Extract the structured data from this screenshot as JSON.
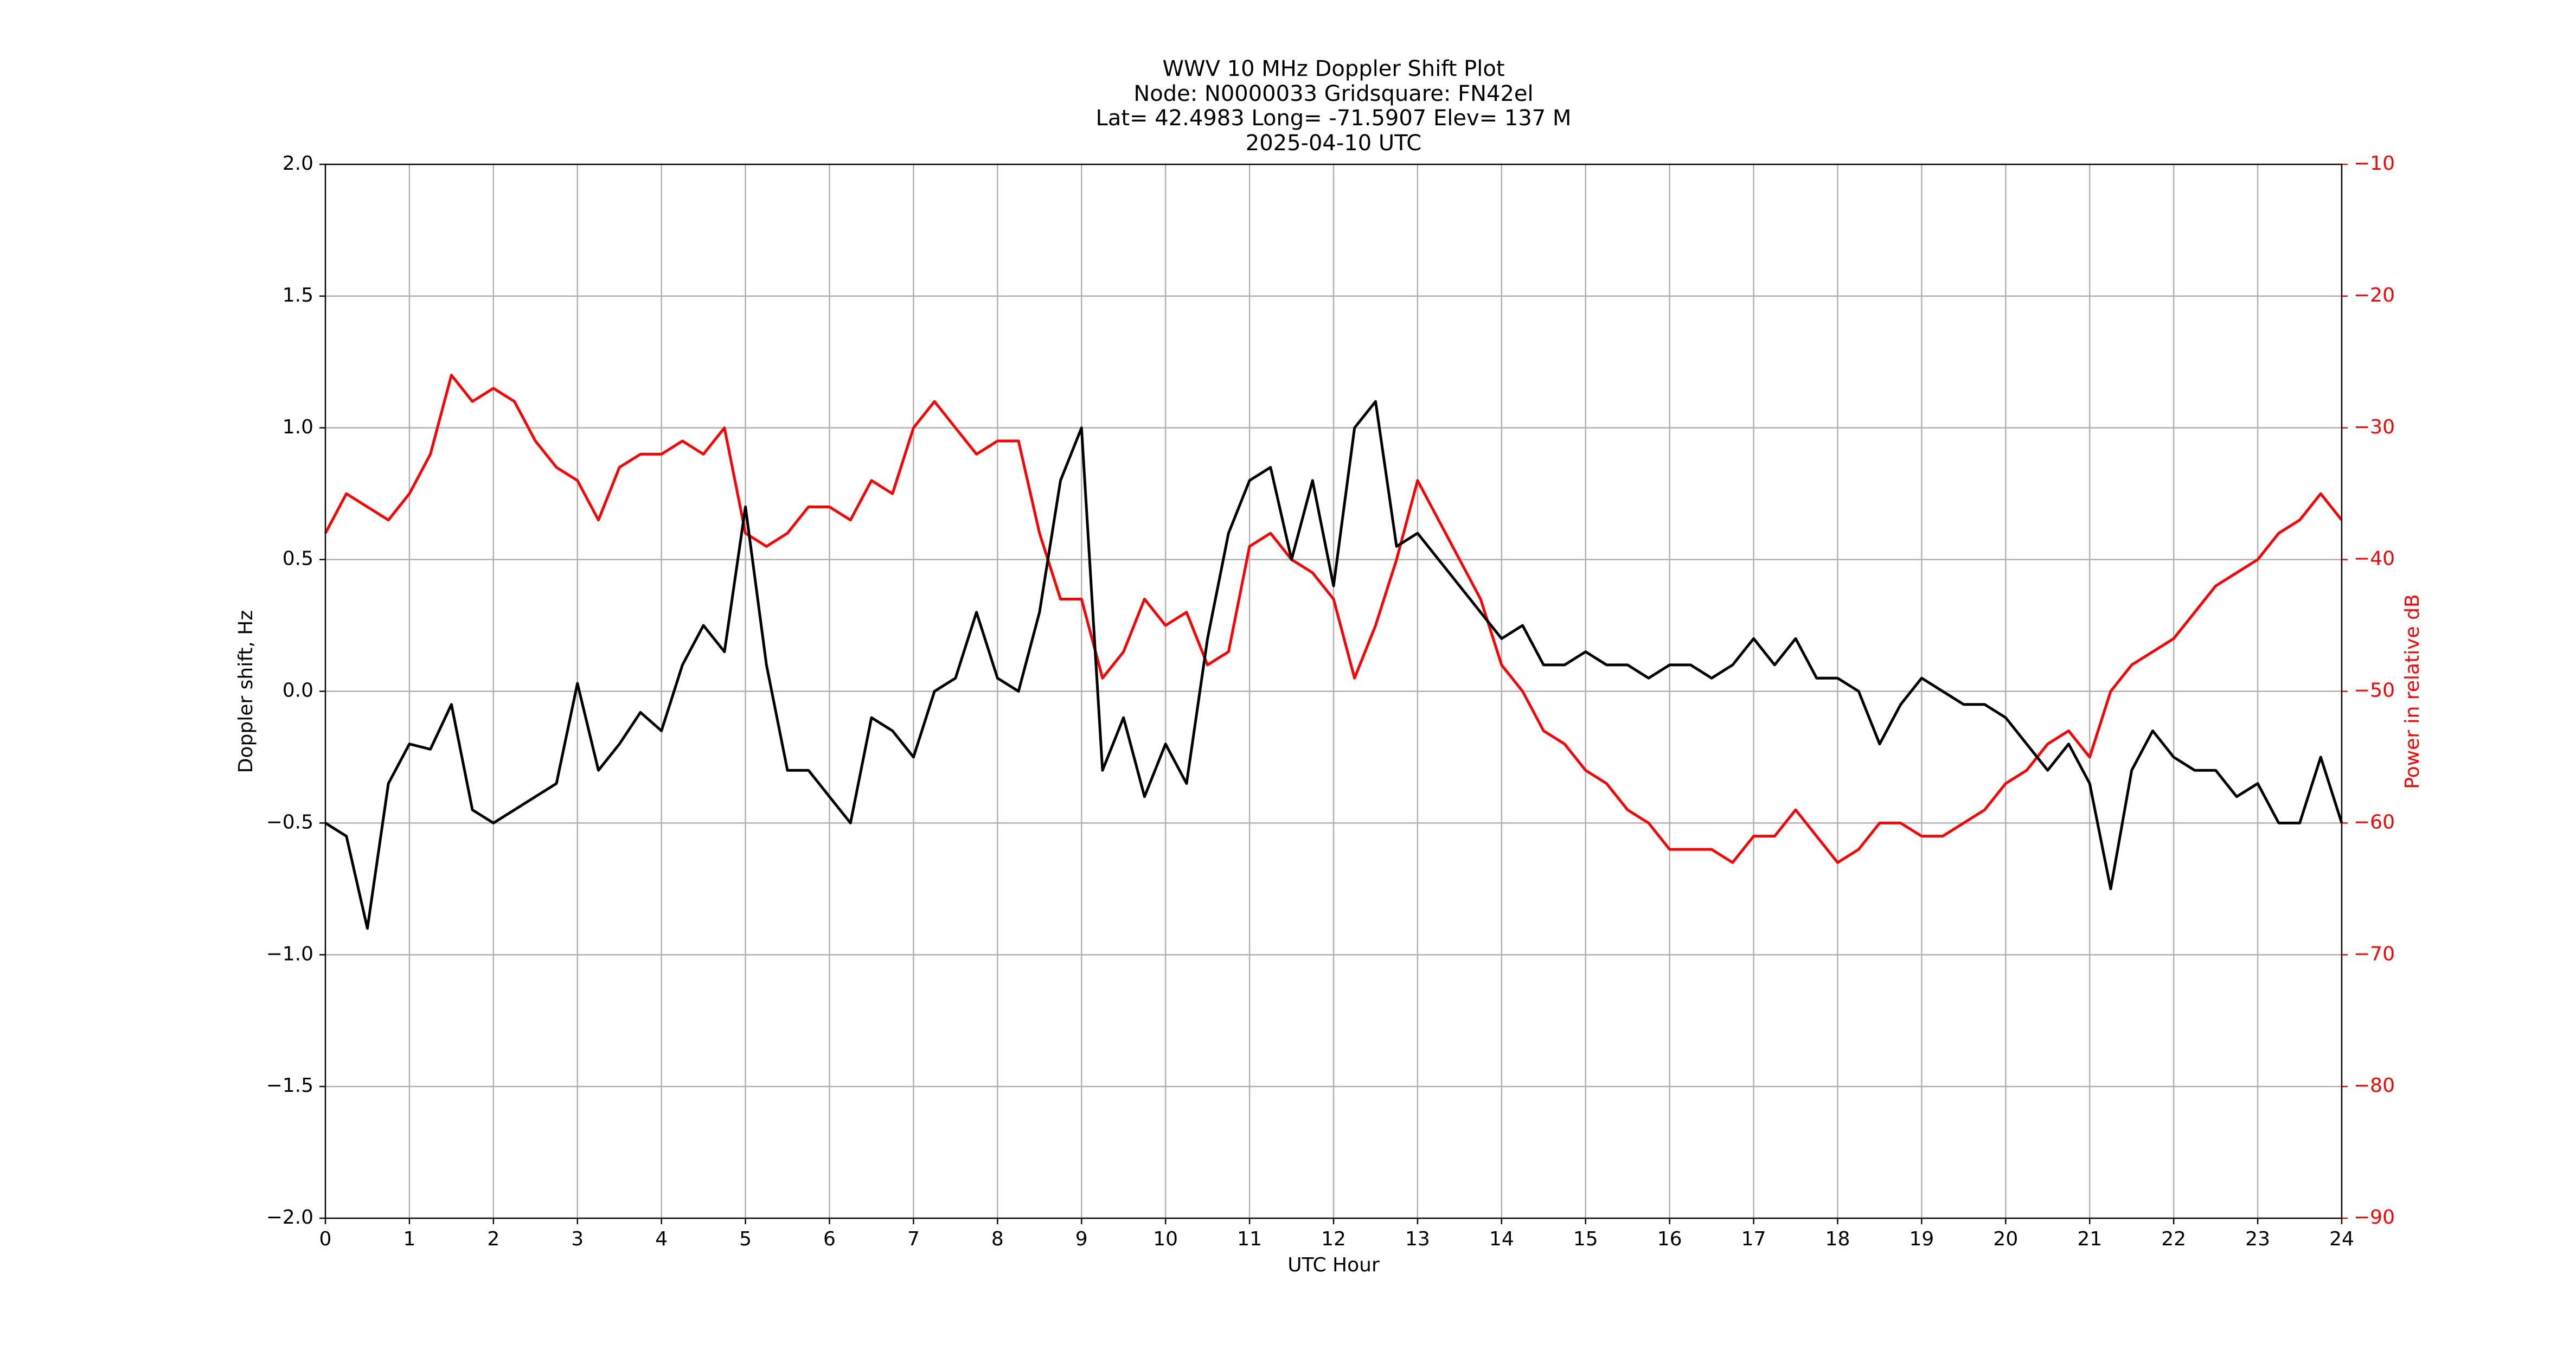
{
  "chart_data": {
    "type": "line",
    "title": [
      "WWV 10 MHz Doppler Shift Plot",
      "Node:  N0000033     Gridsquare:  FN42el",
      "Lat= 42.4983    Long= -71.5907    Elev= 137 M",
      "2025-04-10  UTC"
    ],
    "xlabel": "UTC Hour",
    "ylabel": "Doppler shift, Hz",
    "y2label": "Power in relative dB",
    "x": [
      0,
      0.25,
      0.5,
      0.75,
      1,
      1.25,
      1.5,
      1.75,
      2,
      2.25,
      2.5,
      2.75,
      3,
      3.25,
      3.5,
      3.75,
      4,
      4.25,
      4.5,
      4.75,
      5,
      5.25,
      5.5,
      5.75,
      6,
      6.25,
      6.5,
      6.75,
      7,
      7.25,
      7.5,
      7.75,
      8,
      8.25,
      8.5,
      8.75,
      9,
      9.25,
      9.5,
      9.75,
      10,
      10.25,
      10.5,
      10.75,
      11,
      11.25,
      11.5,
      11.75,
      12,
      12.25,
      12.5,
      12.75,
      13,
      13.25,
      13.5,
      13.75,
      14,
      14.25,
      14.5,
      14.75,
      15,
      15.25,
      15.5,
      15.75,
      16,
      16.25,
      16.5,
      16.75,
      17,
      17.25,
      17.5,
      17.75,
      18,
      18.25,
      18.5,
      18.75,
      19,
      19.25,
      19.5,
      19.75,
      20,
      20.25,
      20.5,
      20.75,
      21,
      21.25,
      21.5,
      21.75,
      22,
      22.25,
      22.5,
      22.75,
      23,
      23.25,
      23.5,
      23.75,
      24
    ],
    "series": [
      {
        "name": "Doppler shift",
        "color": "#000000",
        "axis": "y",
        "values": [
          -0.5,
          -0.55,
          -0.9,
          -0.35,
          -0.2,
          -0.22,
          -0.05,
          -0.45,
          -0.5,
          -0.45,
          -0.4,
          -0.35,
          0.03,
          -0.3,
          -0.2,
          -0.08,
          -0.15,
          0.1,
          0.25,
          0.15,
          0.7,
          0.1,
          -0.3,
          -0.3,
          -0.4,
          -0.5,
          -0.1,
          -0.15,
          -0.25,
          0.0,
          0.05,
          0.3,
          0.05,
          0.0,
          0.3,
          0.8,
          1.0,
          -0.3,
          -0.1,
          -0.4,
          -0.2,
          -0.35,
          0.2,
          0.6,
          0.8,
          0.85,
          0.5,
          0.8,
          0.4,
          1.0,
          1.1,
          0.55,
          0.6,
          0.5,
          0.4,
          0.3,
          0.2,
          0.25,
          0.1,
          0.1,
          0.15,
          0.1,
          0.1,
          0.05,
          0.1,
          0.1,
          0.05,
          0.1,
          0.2,
          0.1,
          0.2,
          0.05,
          0.05,
          0.0,
          -0.2,
          -0.05,
          0.05,
          0.0,
          -0.05,
          -0.05,
          -0.1,
          -0.2,
          -0.3,
          -0.2,
          -0.35,
          -0.75,
          -0.3,
          -0.15,
          -0.25,
          -0.3,
          -0.3,
          -0.4,
          -0.35,
          -0.5,
          -0.5,
          -0.25,
          -0.5
        ]
      },
      {
        "name": "Power",
        "color": "#ff0000",
        "axis": "y2",
        "values": [
          -38,
          -35,
          -36,
          -37,
          -35,
          -32,
          -26,
          -28,
          -27,
          -28,
          -31,
          -33,
          -34,
          -37,
          -33,
          -32,
          -32,
          -31,
          -32,
          -30,
          -38,
          -39,
          -38,
          -36,
          -36,
          -37,
          -34,
          -35,
          -30,
          -28,
          -30,
          -32,
          -31,
          -31,
          -38,
          -43,
          -43,
          -49,
          -47,
          -43,
          -45,
          -44,
          -48,
          -47,
          -39,
          -38,
          -40,
          -41,
          -43,
          -49,
          -45,
          -40,
          -34,
          -37,
          -40,
          -43,
          -48,
          -50,
          -53,
          -54,
          -56,
          -57,
          -59,
          -60,
          -62,
          -62,
          -62,
          -63,
          -61,
          -61,
          -59,
          -61,
          -63,
          -62,
          -60,
          -60,
          -61,
          -61,
          -60,
          -59,
          -57,
          -56,
          -54,
          -53,
          -55,
          -50,
          -48,
          -47,
          -46,
          -44,
          -42,
          -41,
          -40,
          -38,
          -37,
          -35,
          -37
        ]
      }
    ],
    "xlim": [
      0,
      24
    ],
    "xticks": [
      0,
      1,
      2,
      3,
      4,
      5,
      6,
      7,
      8,
      9,
      10,
      11,
      12,
      13,
      14,
      15,
      16,
      17,
      18,
      19,
      20,
      21,
      22,
      23,
      24
    ],
    "ylim": [
      -2,
      2
    ],
    "yticks": [
      {
        "value": -2,
        "label": "−2.0"
      },
      {
        "value": -1.5,
        "label": "−1.5"
      },
      {
        "value": -1,
        "label": "−1.0"
      },
      {
        "value": -0.5,
        "label": "−0.5"
      },
      {
        "value": 0,
        "label": "0.0"
      },
      {
        "value": 0.5,
        "label": "0.5"
      },
      {
        "value": 1,
        "label": "1.0"
      },
      {
        "value": 1.5,
        "label": "1.5"
      },
      {
        "value": 2,
        "label": "2.0"
      }
    ],
    "y2lim": [
      -90,
      -10
    ],
    "y2ticks": [
      {
        "value": -90,
        "label": "−90"
      },
      {
        "value": -80,
        "label": "−80"
      },
      {
        "value": -70,
        "label": "−70"
      },
      {
        "value": -60,
        "label": "−60"
      },
      {
        "value": -50,
        "label": "−50"
      },
      {
        "value": -40,
        "label": "−40"
      },
      {
        "value": -30,
        "label": "−30"
      },
      {
        "value": -20,
        "label": "−20"
      },
      {
        "value": -10,
        "label": "−10"
      }
    ],
    "y2color": "#ff0000",
    "grid": true
  }
}
